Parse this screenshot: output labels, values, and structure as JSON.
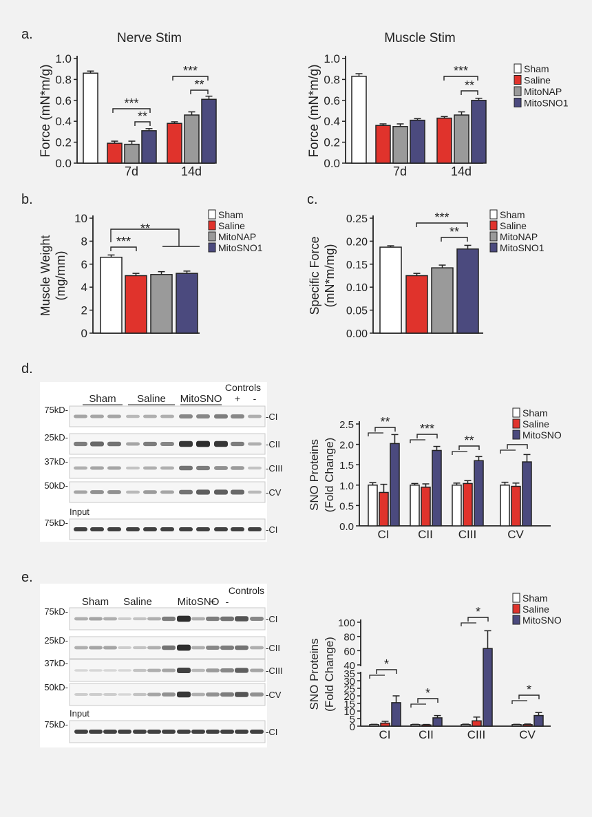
{
  "colors": {
    "sham": "#ffffff",
    "saline": "#e0332c",
    "mitonap": "#9a9a9a",
    "mitosno": "#4b4a7e",
    "axis": "#222222",
    "page_bg": "#f2f2f2"
  },
  "panel_labels": [
    "a.",
    "b.",
    "c.",
    "d.",
    "e."
  ],
  "legends": {
    "four_groups": [
      "Sham",
      "Saline",
      "MitoNAP",
      "MitoSNO1"
    ],
    "three_groups": [
      "Sham",
      "Saline",
      "MitoSNO"
    ]
  },
  "blots": [
    {
      "panel": "d",
      "header_groups": [
        "Sham",
        "Saline",
        "MitoSNO"
      ],
      "controls_label": "Controls",
      "control_lanes": [
        "+",
        "-"
      ],
      "row_mw": [
        "75kD-",
        "25kD-",
        "37kD-",
        "50kD-"
      ],
      "row_labels": [
        "-CI",
        "-CII",
        "-CIII",
        "-CV"
      ],
      "input_label": "Input",
      "input_mw": "75kD-",
      "input_band": "-CI"
    },
    {
      "panel": "e",
      "header_groups": [
        "Sham",
        "Saline",
        "MitoSNO"
      ],
      "controls_label": "Controls",
      "control_lanes": [
        "+",
        "-"
      ],
      "row_mw": [
        "75kD-",
        "25kD-",
        "37kD-",
        "50kD-"
      ],
      "row_labels": [
        "-CI",
        "-CII",
        "-CIII",
        "-CV"
      ],
      "input_label": "Input",
      "input_mw": "75kD-",
      "input_band": "-CI"
    }
  ],
  "chart_data": [
    {
      "panel": "a",
      "type": "bar",
      "title": "Nerve Stim",
      "ylabel": "Force (mN*m/g)",
      "ylim": [
        0,
        1.0
      ],
      "yticks": [
        "0.0",
        "0.2",
        "0.4",
        "0.6",
        "0.8",
        "1.0"
      ],
      "categories": [
        "",
        "7d",
        "14d"
      ],
      "series": [
        {
          "name": "Sham",
          "values": [
            0.86,
            null,
            null
          ],
          "errors": [
            0.02,
            null,
            null
          ]
        },
        {
          "name": "Saline",
          "values": [
            null,
            0.19,
            0.38
          ],
          "errors": [
            null,
            0.02,
            0.015
          ]
        },
        {
          "name": "MitoNAP",
          "values": [
            null,
            0.18,
            0.46
          ],
          "errors": [
            null,
            0.03,
            0.03
          ]
        },
        {
          "name": "MitoSNO1",
          "values": [
            null,
            0.31,
            0.61
          ],
          "errors": [
            null,
            0.02,
            0.03
          ]
        }
      ],
      "significance": [
        "***",
        "**",
        "***",
        "**"
      ]
    },
    {
      "panel": "a",
      "type": "bar",
      "title": "Muscle Stim",
      "ylabel": "Force (mN*m/g)",
      "ylim": [
        0,
        1.0
      ],
      "yticks": [
        "0.0",
        "0.2",
        "0.4",
        "0.6",
        "0.8",
        "1.0"
      ],
      "categories": [
        "",
        "7d",
        "14d"
      ],
      "series": [
        {
          "name": "Sham",
          "values": [
            0.83,
            null,
            null
          ],
          "errors": [
            0.025,
            null,
            null
          ]
        },
        {
          "name": "Saline",
          "values": [
            null,
            0.36,
            0.43
          ],
          "errors": [
            null,
            0.015,
            0.015
          ]
        },
        {
          "name": "MitoNAP",
          "values": [
            null,
            0.35,
            0.46
          ],
          "errors": [
            null,
            0.025,
            0.03
          ]
        },
        {
          "name": "MitoSNO1",
          "values": [
            null,
            0.41,
            0.6
          ],
          "errors": [
            null,
            0.015,
            0.02
          ]
        }
      ],
      "significance": [
        "***",
        "**"
      ]
    },
    {
      "panel": "b",
      "type": "bar",
      "ylabel": [
        "Muscle Weight",
        "(mg/mm)"
      ],
      "ylim": [
        0,
        10
      ],
      "yticks": [
        "0",
        "2",
        "4",
        "6",
        "8",
        "10"
      ],
      "categories": [
        "Sham",
        "Saline",
        "MitoNAP",
        "MitoSNO1"
      ],
      "values": [
        6.6,
        5.0,
        5.1,
        5.2
      ],
      "errors": [
        0.2,
        0.2,
        0.25,
        0.2
      ],
      "significance": [
        "***",
        "**"
      ]
    },
    {
      "panel": "c",
      "type": "bar",
      "ylabel": [
        "Specific Force",
        "(mN*m/mg)"
      ],
      "ylim": [
        0,
        0.25
      ],
      "yticks": [
        "0.00",
        "0.05",
        "0.10",
        "0.15",
        "0.20",
        "0.25"
      ],
      "categories": [
        "Sham",
        "Saline",
        "MitoNAP",
        "MitoSNO1"
      ],
      "values": [
        0.187,
        0.125,
        0.142,
        0.183
      ],
      "errors": [
        0.003,
        0.005,
        0.006,
        0.008
      ],
      "significance": [
        "***",
        "**"
      ]
    },
    {
      "panel": "d",
      "type": "bar",
      "ylabel": [
        "SNO Proteins",
        "(Fold Change)"
      ],
      "ylim": [
        0,
        2.5
      ],
      "yticks": [
        "0.0",
        "0.5",
        "1.0",
        "1.5",
        "2.0",
        "2.5"
      ],
      "categories": [
        "CI",
        "CII",
        "CIII",
        "CV"
      ],
      "series": [
        {
          "name": "Sham",
          "values": [
            1.0,
            1.0,
            1.0,
            1.0
          ],
          "errors": [
            0.06,
            0.04,
            0.05,
            0.07
          ]
        },
        {
          "name": "Saline",
          "values": [
            0.82,
            0.95,
            1.04,
            0.97
          ],
          "errors": [
            0.2,
            0.08,
            0.07,
            0.08
          ]
        },
        {
          "name": "MitoSNO",
          "values": [
            2.02,
            1.85,
            1.6,
            1.57
          ],
          "errors": [
            0.22,
            0.1,
            0.1,
            0.18
          ]
        }
      ],
      "significance": [
        "**",
        "***",
        "**",
        "*"
      ]
    },
    {
      "panel": "e",
      "type": "bar",
      "ylabel": [
        "SNO Proteins",
        "(Fold Change)"
      ],
      "ylim": [
        0,
        100
      ],
      "axis_break": [
        35,
        40
      ],
      "yticks": [
        "0",
        "5",
        "10",
        "15",
        "20",
        "25",
        "30",
        "35",
        "40",
        "60",
        "80",
        "100"
      ],
      "categories": [
        "CI",
        "CII",
        "CIII",
        "CV"
      ],
      "series": [
        {
          "name": "Sham",
          "values": [
            1,
            1,
            1,
            1
          ],
          "errors": [
            0.2,
            0.2,
            0.3,
            0.2
          ]
        },
        {
          "name": "Saline",
          "values": [
            2,
            0.8,
            3.5,
            1
          ],
          "errors": [
            1.2,
            0.3,
            2.5,
            0.4
          ]
        },
        {
          "name": "MitoSNO",
          "values": [
            15.5,
            5.5,
            63,
            7
          ],
          "errors": [
            4.5,
            1.5,
            25,
            2
          ]
        }
      ],
      "significance": [
        "*",
        "*",
        "*",
        "*"
      ]
    }
  ]
}
